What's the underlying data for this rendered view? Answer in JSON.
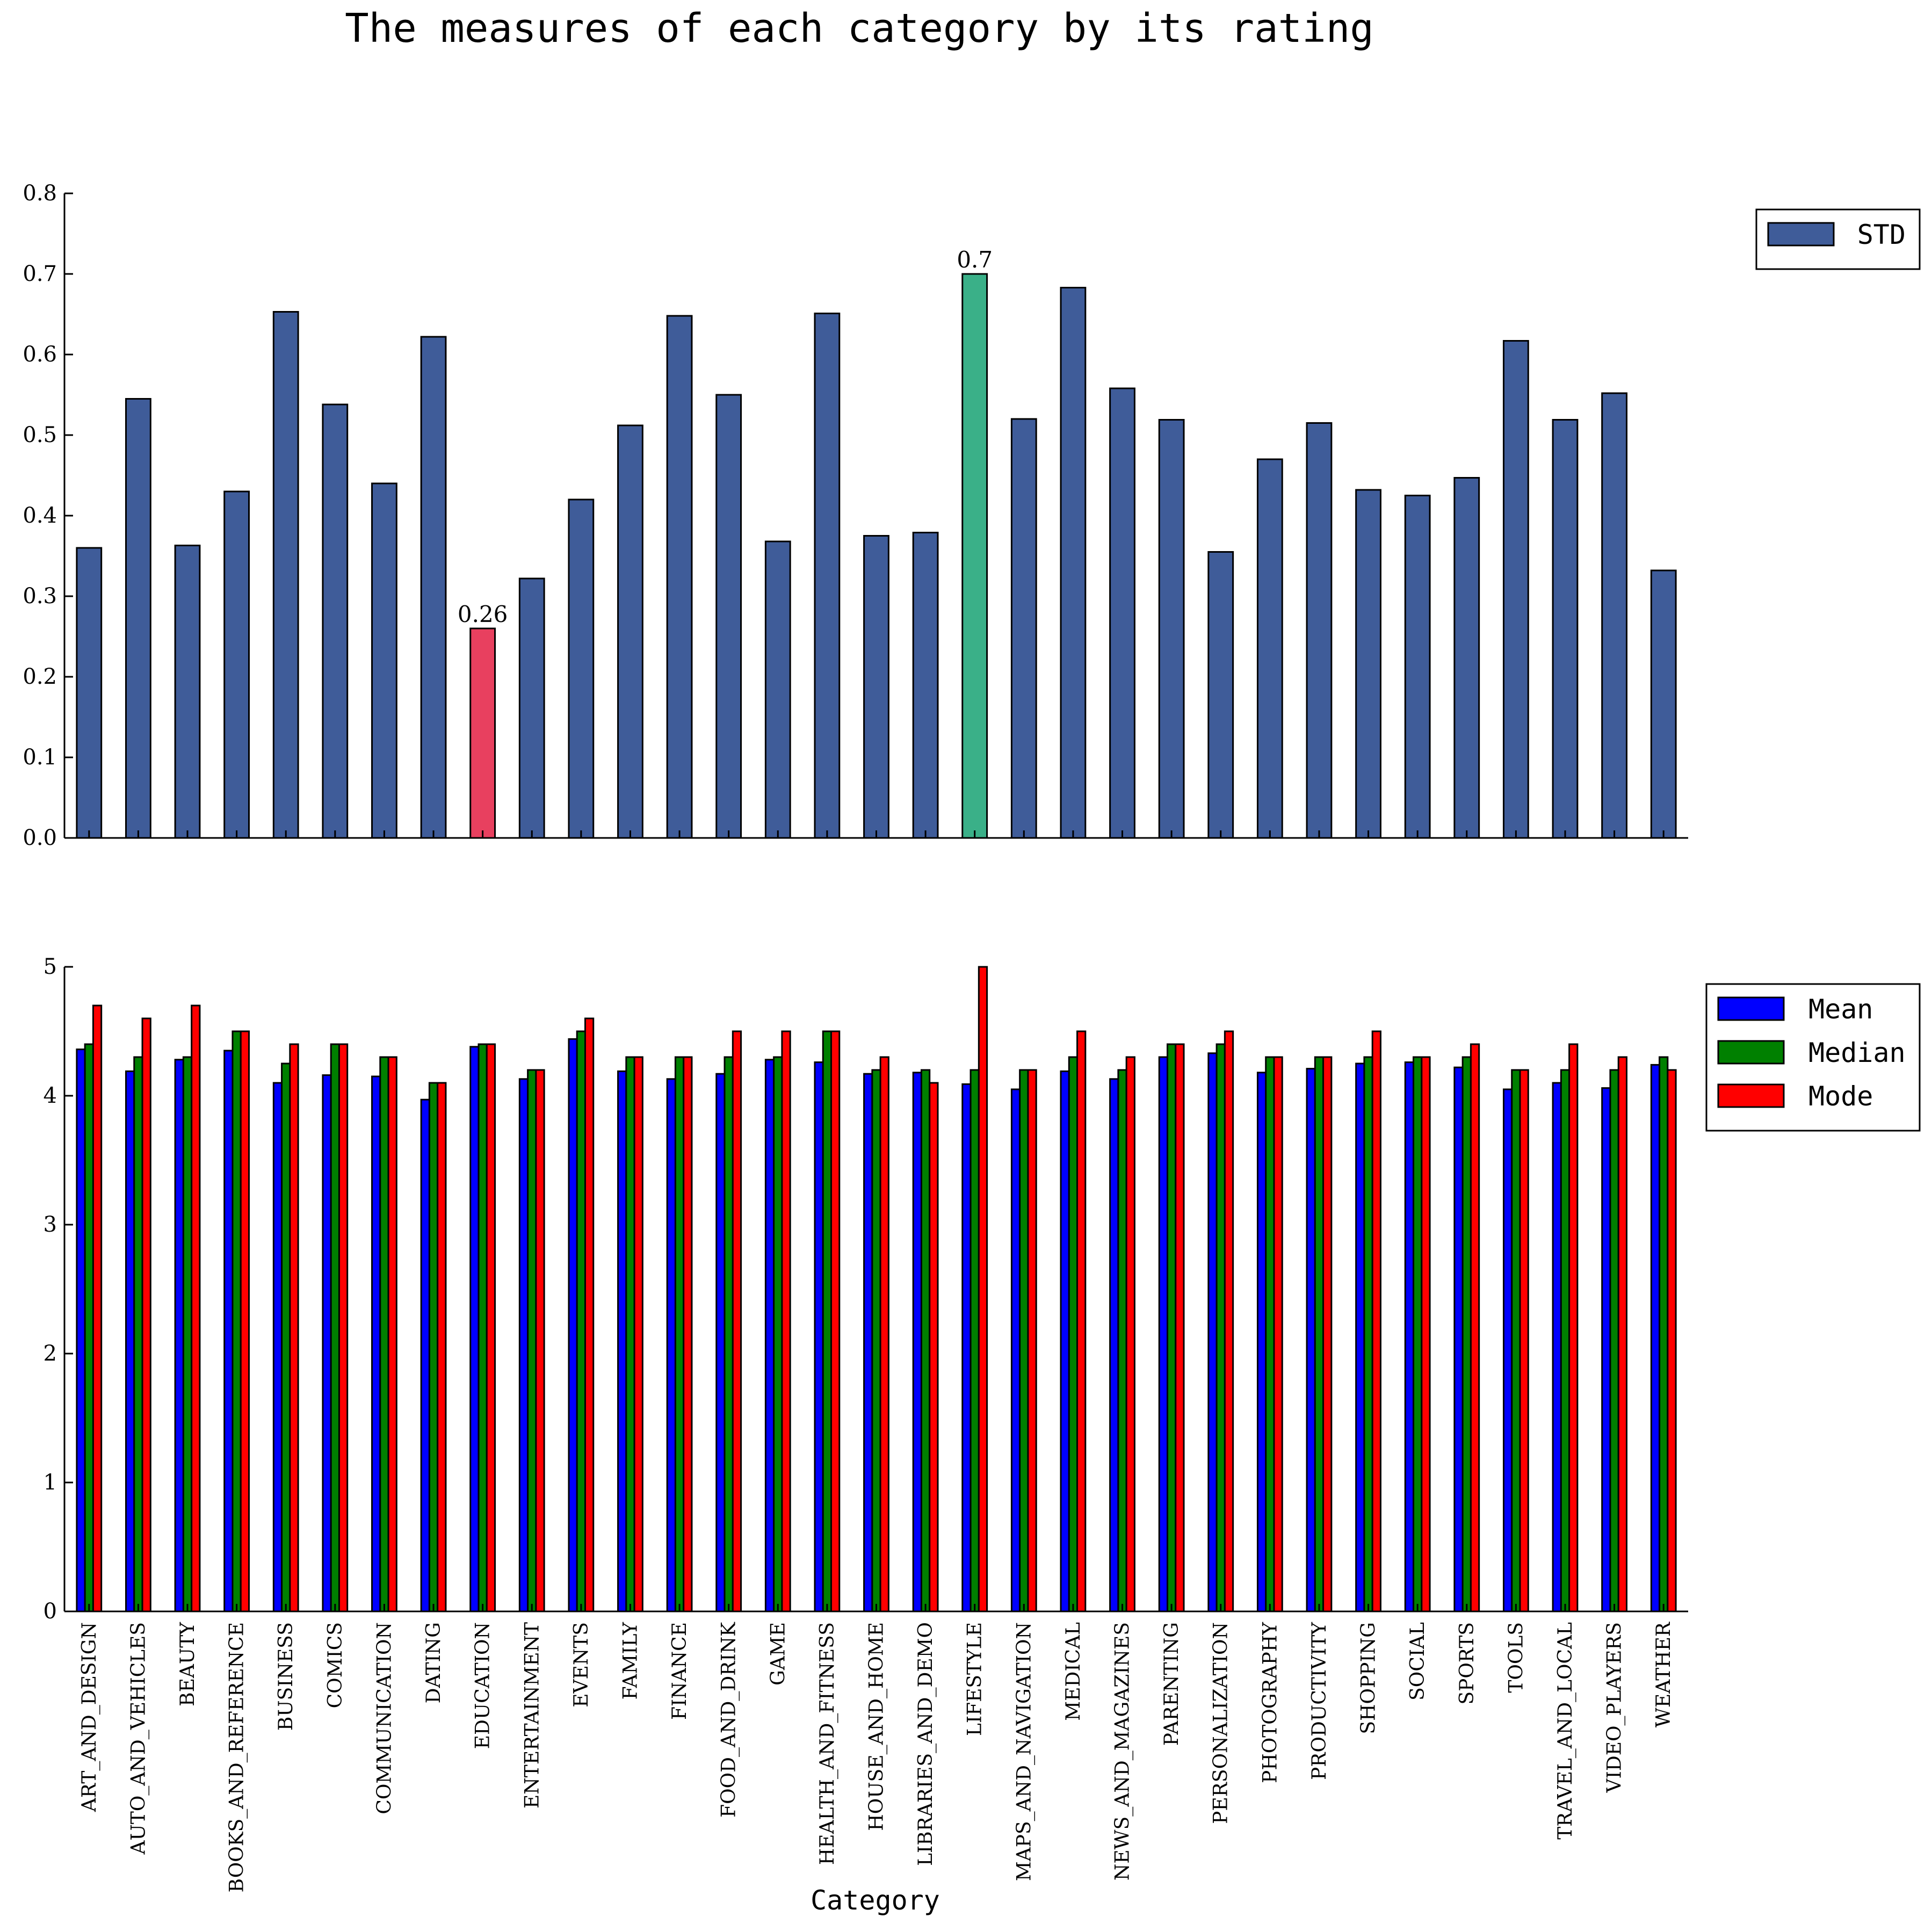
{
  "title": "The measures of each category by its rating",
  "chart_data": [
    {
      "type": "bar",
      "categories": [
        "ART_AND_DESIGN",
        "AUTO_AND_VEHICLES",
        "BEAUTY",
        "BOOKS_AND_REFERENCE",
        "BUSINESS",
        "COMICS",
        "COMMUNICATION",
        "DATING",
        "EDUCATION",
        "ENTERTAINMENT",
        "EVENTS",
        "FAMILY",
        "FINANCE",
        "FOOD_AND_DRINK",
        "GAME",
        "HEALTH_AND_FITNESS",
        "HOUSE_AND_HOME",
        "LIBRARIES_AND_DEMO",
        "LIFESTYLE",
        "MAPS_AND_NAVIGATION",
        "MEDICAL",
        "NEWS_AND_MAGAZINES",
        "PARENTING",
        "PERSONALIZATION",
        "PHOTOGRAPHY",
        "PRODUCTIVITY",
        "SHOPPING",
        "SOCIAL",
        "SPORTS",
        "TOOLS",
        "TRAVEL_AND_LOCAL",
        "VIDEO_PLAYERS",
        "WEATHER"
      ],
      "series": [
        {
          "name": "STD",
          "color": "#3f5c99",
          "values": [
            0.36,
            0.545,
            0.363,
            0.43,
            0.653,
            0.538,
            0.44,
            0.622,
            0.26,
            0.322,
            0.42,
            0.512,
            0.648,
            0.55,
            0.368,
            0.651,
            0.375,
            0.379,
            0.7,
            0.52,
            0.683,
            0.558,
            0.519,
            0.355,
            0.47,
            0.515,
            0.432,
            0.425,
            0.447,
            0.617,
            0.519,
            0.552,
            0.332
          ]
        }
      ],
      "highlight": [
        {
          "index": 8,
          "color": "#e8405f",
          "label": "0.26"
        },
        {
          "index": 18,
          "color": "#3ab088",
          "label": "0.7"
        }
      ],
      "ylim": [
        0,
        0.8
      ],
      "yticks": [
        "0.0",
        "0.1",
        "0.2",
        "0.3",
        "0.4",
        "0.5",
        "0.6",
        "0.7",
        "0.8"
      ],
      "legend": "top-right outside"
    },
    {
      "type": "bar",
      "categories": [
        "ART_AND_DESIGN",
        "AUTO_AND_VEHICLES",
        "BEAUTY",
        "BOOKS_AND_REFERENCE",
        "BUSINESS",
        "COMICS",
        "COMMUNICATION",
        "DATING",
        "EDUCATION",
        "ENTERTAINMENT",
        "EVENTS",
        "FAMILY",
        "FINANCE",
        "FOOD_AND_DRINK",
        "GAME",
        "HEALTH_AND_FITNESS",
        "HOUSE_AND_HOME",
        "LIBRARIES_AND_DEMO",
        "LIFESTYLE",
        "MAPS_AND_NAVIGATION",
        "MEDICAL",
        "NEWS_AND_MAGAZINES",
        "PARENTING",
        "PERSONALIZATION",
        "PHOTOGRAPHY",
        "PRODUCTIVITY",
        "SHOPPING",
        "SOCIAL",
        "SPORTS",
        "TOOLS",
        "TRAVEL_AND_LOCAL",
        "VIDEO_PLAYERS",
        "WEATHER"
      ],
      "series": [
        {
          "name": "Mean",
          "color": "#0000ff",
          "values": [
            4.36,
            4.19,
            4.28,
            4.35,
            4.1,
            4.16,
            4.15,
            3.97,
            4.38,
            4.13,
            4.44,
            4.19,
            4.13,
            4.17,
            4.28,
            4.26,
            4.17,
            4.18,
            4.09,
            4.05,
            4.19,
            4.13,
            4.3,
            4.33,
            4.18,
            4.21,
            4.25,
            4.26,
            4.22,
            4.05,
            4.1,
            4.06,
            4.24
          ]
        },
        {
          "name": "Median",
          "color": "#008000",
          "values": [
            4.4,
            4.3,
            4.3,
            4.5,
            4.25,
            4.4,
            4.3,
            4.1,
            4.4,
            4.2,
            4.5,
            4.3,
            4.3,
            4.3,
            4.3,
            4.5,
            4.2,
            4.2,
            4.2,
            4.2,
            4.3,
            4.2,
            4.4,
            4.4,
            4.3,
            4.3,
            4.3,
            4.3,
            4.3,
            4.2,
            4.2,
            4.2,
            4.3
          ]
        },
        {
          "name": "Mode",
          "color": "#ff0000",
          "values": [
            4.7,
            4.6,
            4.7,
            4.5,
            4.4,
            4.4,
            4.3,
            4.1,
            4.4,
            4.2,
            4.6,
            4.3,
            4.3,
            4.5,
            4.5,
            4.5,
            4.3,
            4.1,
            5.0,
            4.2,
            4.5,
            4.3,
            4.4,
            4.5,
            4.3,
            4.3,
            4.5,
            4.3,
            4.4,
            4.2,
            4.4,
            4.3,
            4.2
          ]
        }
      ],
      "ylim": [
        0,
        5
      ],
      "yticks": [
        "0",
        "1",
        "2",
        "3",
        "4",
        "5"
      ],
      "xlabel": "Category",
      "legend": "top-right outside"
    }
  ]
}
